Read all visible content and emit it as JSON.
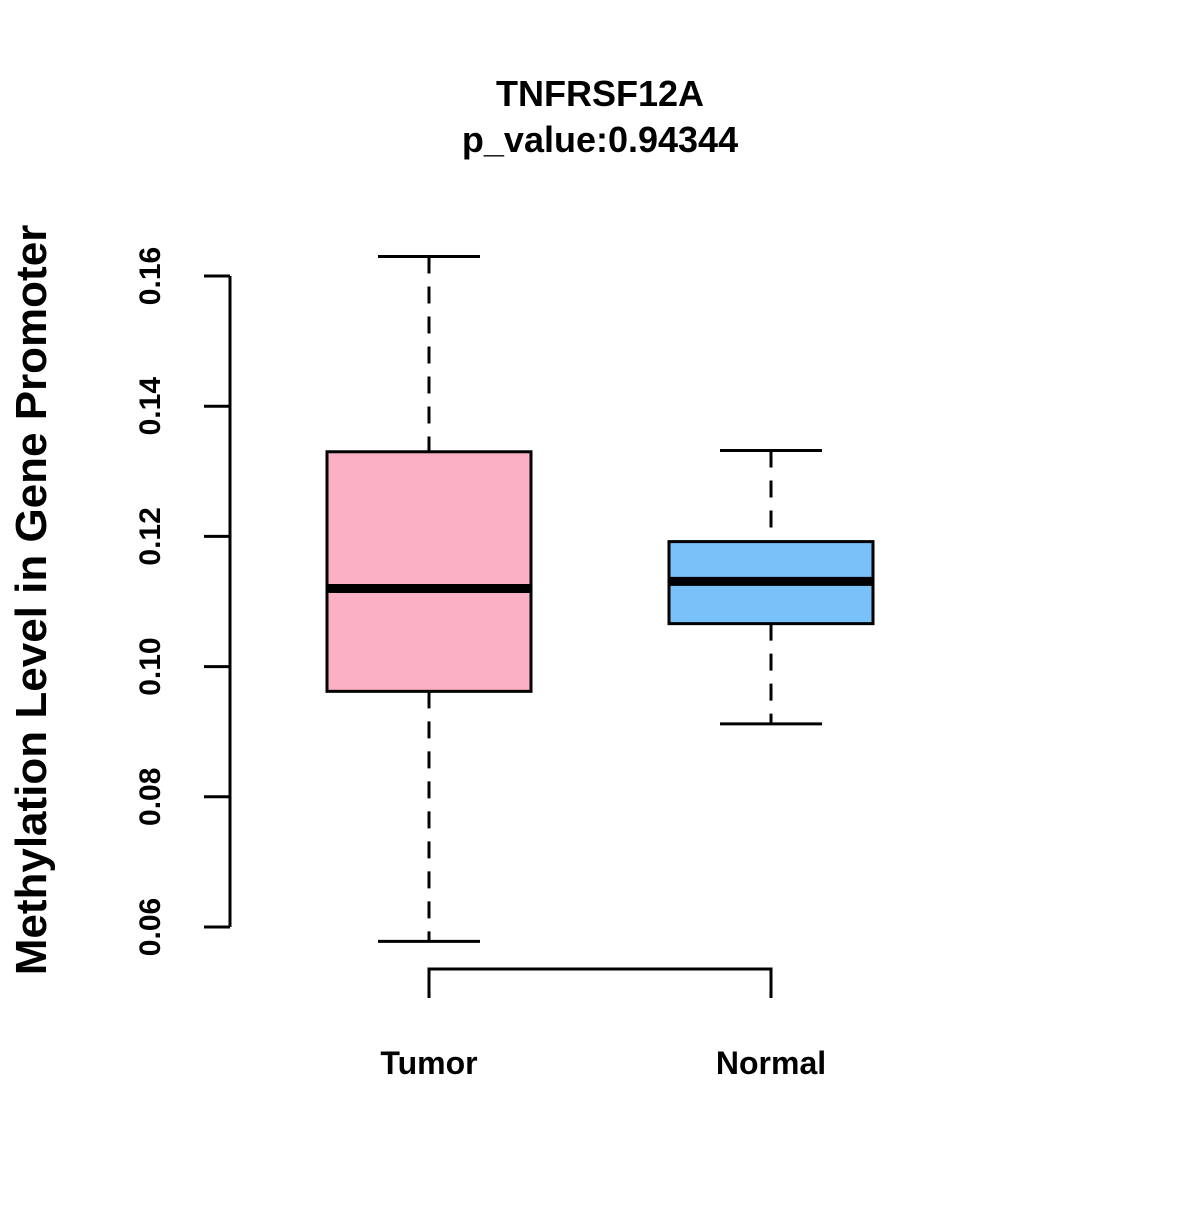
{
  "chart_data": {
    "type": "boxplot",
    "title": "TNFRSF12A",
    "subtitle": "p_value:0.94344",
    "xlabel": "",
    "ylabel": "Methylation Level in Gene Promoter",
    "ylim": [
      0.06,
      0.16
    ],
    "yticks": [
      0.06,
      0.08,
      0.1,
      0.12,
      0.14,
      0.16
    ],
    "ytick_labels": [
      "0.06",
      "0.08",
      "0.10",
      "0.12",
      "0.14",
      "0.16"
    ],
    "categories": [
      "Tumor",
      "Normal"
    ],
    "boxes": [
      {
        "category": "Tumor",
        "whisker_low": 0.0578,
        "q1": 0.0962,
        "median": 0.112,
        "q3": 0.133,
        "whisker_high": 0.163,
        "color": "#FBB1C3"
      },
      {
        "category": "Normal",
        "whisker_low": 0.0912,
        "q1": 0.1066,
        "median": 0.1131,
        "q3": 0.1192,
        "whisker_high": 0.1332,
        "color": "#79C1F8"
      }
    ],
    "significance_bracket": {
      "from": "Tumor",
      "to": "Normal",
      "label": ""
    },
    "grid": false,
    "legend": "none"
  }
}
